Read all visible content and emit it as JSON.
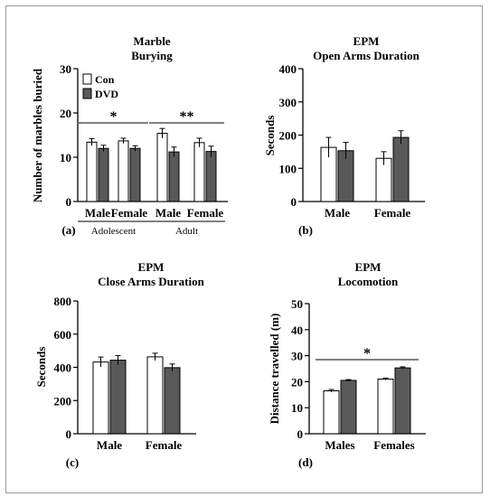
{
  "colors": {
    "con": "#ffffff",
    "dvd": "#595959",
    "axis": "#000000"
  },
  "legend": {
    "items": [
      "Con",
      "DVD"
    ]
  },
  "chart_data": [
    {
      "panel": "(a)",
      "type": "bar",
      "title": [
        "Marble",
        "Burying"
      ],
      "ylabel": "Number of marbles buried",
      "ylim": [
        0,
        30
      ],
      "yticks": [
        0,
        10,
        20,
        30
      ],
      "categories": [
        "Male",
        "Female",
        "Male",
        "Female"
      ],
      "groups": [
        {
          "label": "Adolescent",
          "categories": [
            0,
            1
          ]
        },
        {
          "label": "Adult",
          "categories": [
            2,
            3
          ]
        }
      ],
      "series": [
        {
          "name": "Con",
          "values": [
            13.4,
            13.7,
            15.4,
            13.3
          ],
          "errors": [
            0.8,
            0.6,
            1.1,
            1.0
          ]
        },
        {
          "name": "DVD",
          "values": [
            12.0,
            12.0,
            11.2,
            11.3
          ],
          "errors": [
            0.7,
            0.6,
            1.1,
            1.2
          ]
        }
      ],
      "annotations": [
        {
          "text": "*",
          "span": [
            0,
            1
          ]
        },
        {
          "text": "**",
          "span": [
            2,
            3
          ]
        }
      ]
    },
    {
      "panel": "(b)",
      "type": "bar",
      "title": [
        "EPM",
        "Open Arms Duration"
      ],
      "ylabel": "Seconds",
      "ylim": [
        0,
        400
      ],
      "yticks": [
        0,
        100,
        200,
        300,
        400
      ],
      "categories": [
        "Male",
        "Female"
      ],
      "series": [
        {
          "name": "Con",
          "values": [
            163,
            130
          ],
          "errors": [
            30,
            20
          ]
        },
        {
          "name": "DVD",
          "values": [
            153,
            193
          ],
          "errors": [
            25,
            20
          ]
        }
      ],
      "annotations": []
    },
    {
      "panel": "(c)",
      "type": "bar",
      "title": [
        "EPM",
        "Close Arms Duration"
      ],
      "ylabel": "Seconds",
      "ylim": [
        0,
        800
      ],
      "yticks": [
        0,
        200,
        400,
        600,
        800
      ],
      "categories": [
        "Male",
        "Female"
      ],
      "series": [
        {
          "name": "Con",
          "values": [
            432,
            463
          ],
          "errors": [
            30,
            22
          ]
        },
        {
          "name": "DVD",
          "values": [
            443,
            398
          ],
          "errors": [
            28,
            22
          ]
        }
      ],
      "annotations": []
    },
    {
      "panel": "(d)",
      "type": "bar",
      "title": [
        "EPM",
        "Locomotion"
      ],
      "ylabel": "Distance travelled (m)",
      "ylim": [
        0,
        50
      ],
      "yticks": [
        0,
        10,
        20,
        30,
        40,
        50
      ],
      "categories": [
        "Males",
        "Females"
      ],
      "series": [
        {
          "name": "Con",
          "values": [
            16.5,
            21.0
          ],
          "errors": [
            0.5,
            0.4
          ]
        },
        {
          "name": "DVD",
          "values": [
            20.5,
            25.3
          ],
          "errors": [
            0.3,
            0.4
          ]
        }
      ],
      "annotations": [
        {
          "text": "*",
          "span": [
            0,
            1
          ]
        }
      ]
    }
  ]
}
